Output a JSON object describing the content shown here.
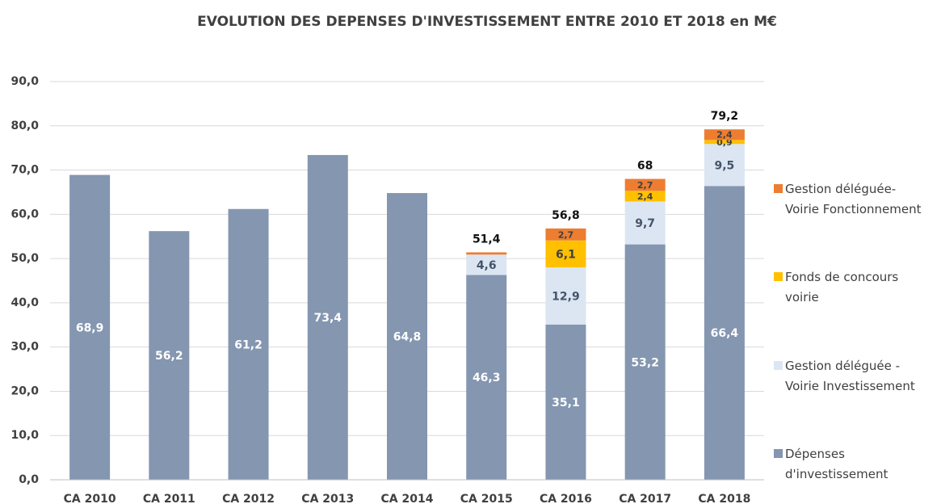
{
  "chart_data": {
    "type": "stacked_bar",
    "title": "EVOLUTION DES DEPENSES D'INVESTISSEMENT ENTRE 2010 ET 2018 en M€",
    "categories": [
      "CA 2010",
      "CA 2011",
      "CA 2012",
      "CA 2013",
      "CA 2014",
      "CA 2015",
      "CA 2016",
      "CA 2017",
      "CA 2018"
    ],
    "series": [
      {
        "name": "Dépenses\nd'investissement",
        "color": "#8496b0",
        "label_color": "#ffffff",
        "values": [
          68.9,
          56.2,
          61.2,
          73.4,
          64.8,
          46.3,
          35.1,
          53.2,
          66.4
        ],
        "value_labels": [
          "68,9",
          "56,2",
          "61,2",
          "73,4",
          "64,8",
          "46,3",
          "35,1",
          "53,2",
          "66,4"
        ]
      },
      {
        "name": "Gestion déléguée -\nVoirie Investissement",
        "color": "#dce6f2",
        "label_color": "#44546a",
        "values": [
          null,
          null,
          null,
          null,
          null,
          4.6,
          12.9,
          9.7,
          9.5
        ],
        "value_labels": [
          null,
          null,
          null,
          null,
          null,
          "4,6",
          "12,9",
          "9,7",
          "9,5"
        ]
      },
      {
        "name": "Fonds de concours\nvoirie",
        "color": "#ffc000",
        "label_color": "#404040",
        "values": [
          null,
          null,
          null,
          null,
          null,
          null,
          6.1,
          2.4,
          0.9
        ],
        "value_labels": [
          null,
          null,
          null,
          null,
          null,
          null,
          "6,1",
          "2,4",
          "0,9"
        ]
      },
      {
        "name": "Gestion déléguée-\nVoirie Fonctionnement",
        "color": "#ed7d31",
        "label_color": "#404040",
        "values": [
          null,
          null,
          null,
          null,
          null,
          0.5,
          2.7,
          2.7,
          2.4
        ],
        "value_labels": [
          null,
          null,
          null,
          null,
          null,
          null,
          "2,7",
          "2,7",
          "2,4"
        ]
      }
    ],
    "totals": [
      null,
      null,
      null,
      null,
      null,
      51.4,
      56.8,
      68,
      79.2
    ],
    "totals_labels": [
      null,
      null,
      null,
      null,
      null,
      "51,4",
      "56,8",
      "68",
      "79,2"
    ],
    "ylim": [
      0,
      90
    ],
    "yticks": [
      {
        "value": 0,
        "label": "0,0"
      },
      {
        "value": 10,
        "label": "10,0"
      },
      {
        "value": 20,
        "label": "20,0"
      },
      {
        "value": 30,
        "label": "30,0"
      },
      {
        "value": 40,
        "label": "40,0"
      },
      {
        "value": 50,
        "label": "50,0"
      },
      {
        "value": 60,
        "label": "60,0"
      },
      {
        "value": 70,
        "label": "70,0"
      },
      {
        "value": 80,
        "label": "80,0"
      },
      {
        "value": 90,
        "label": "90,0"
      }
    ],
    "grid": true,
    "legend": "right"
  }
}
